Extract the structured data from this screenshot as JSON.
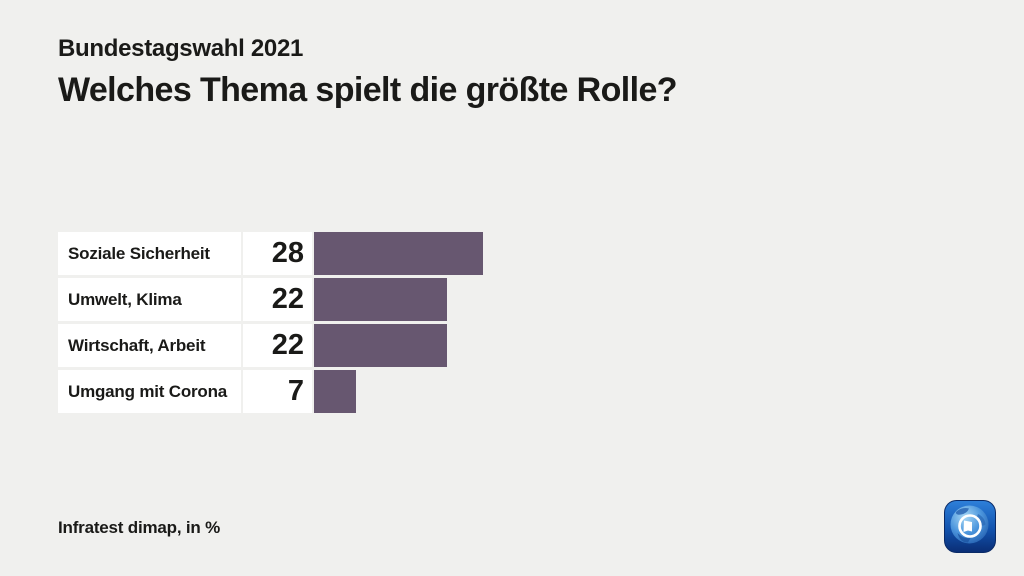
{
  "header": {
    "kicker": "Bundestagswahl 2021",
    "title": "Welches Thema spielt die größte Rolle?"
  },
  "chart_data": {
    "type": "bar",
    "orientation": "horizontal",
    "title": "Bundestagswahl 2021",
    "subtitle": "Welches Thema spielt die größte Rolle?",
    "categories": [
      "Soziale Sicherheit",
      "Umwelt, Klima",
      "Wirtschaft, Arbeit",
      "Umgang mit Corona"
    ],
    "values": [
      28,
      22,
      22,
      7
    ],
    "unit": "%",
    "xlim": [
      0,
      30
    ],
    "legend": "none",
    "grid": "off",
    "bar_color": "#675770",
    "source": "Infratest dimap, in %"
  },
  "footer": {
    "source": "Infratest dimap, in %"
  },
  "logo": {
    "name": "tagesschau-logo"
  },
  "colors": {
    "background": "#f0f0ee",
    "cell_background": "#ffffff",
    "text": "#1a1a18",
    "bar": "#675770"
  }
}
